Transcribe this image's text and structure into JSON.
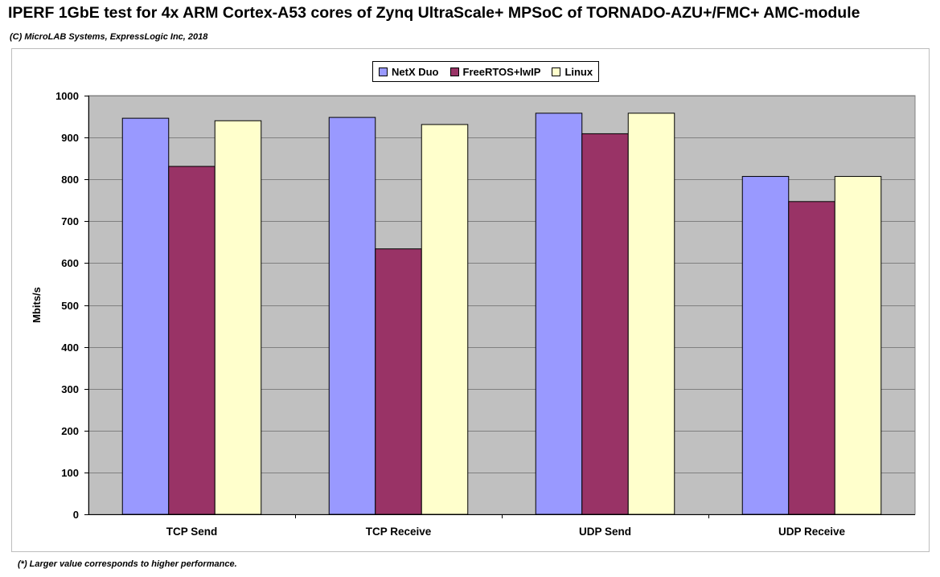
{
  "header": {
    "title": "IPERF 1GbE test for 4x ARM Cortex-A53 cores of Zynq UltraScale+ MPSoC of TORNADO-AZU+/FMC+ AMC-module",
    "subtitle": "(C) MicroLAB Systems, ExpressLogic Inc, 2018"
  },
  "footnote": "(*) Larger value corresponds to higher performance.",
  "legend": {
    "placement": "top-center",
    "items": [
      {
        "label": "NetX Duo",
        "color": "#9999ff"
      },
      {
        "label": "FreeRTOS+lwIP",
        "color": "#993366"
      },
      {
        "label": "Linux",
        "color": "#ffffcc"
      }
    ]
  },
  "colors": {
    "plot_background": "#c0c0c0",
    "gridline": "#808080"
  },
  "chart_data": {
    "type": "bar",
    "title": "IPERF 1GbE test for 4x ARM Cortex-A53 cores of Zynq UltraScale+ MPSoC of TORNADO-AZU+/FMC+ AMC-module",
    "subtitle": "(C) MicroLAB Systems, ExpressLogic Inc, 2018",
    "xlabel": "",
    "ylabel": "Mbits/s",
    "ylim": [
      0,
      1000
    ],
    "yticks": [
      0,
      100,
      200,
      300,
      400,
      500,
      600,
      700,
      800,
      900,
      1000
    ],
    "grid": true,
    "categories": [
      "TCP Send",
      "TCP Receive",
      "UDP Send",
      "UDP Receive"
    ],
    "series": [
      {
        "name": "NetX Duo",
        "values": [
          946,
          948,
          958,
          807
        ]
      },
      {
        "name": "FreeRTOS+lwIP",
        "values": [
          831,
          634,
          909,
          747
        ]
      },
      {
        "name": "Linux",
        "values": [
          940,
          931,
          958,
          807
        ]
      }
    ]
  }
}
